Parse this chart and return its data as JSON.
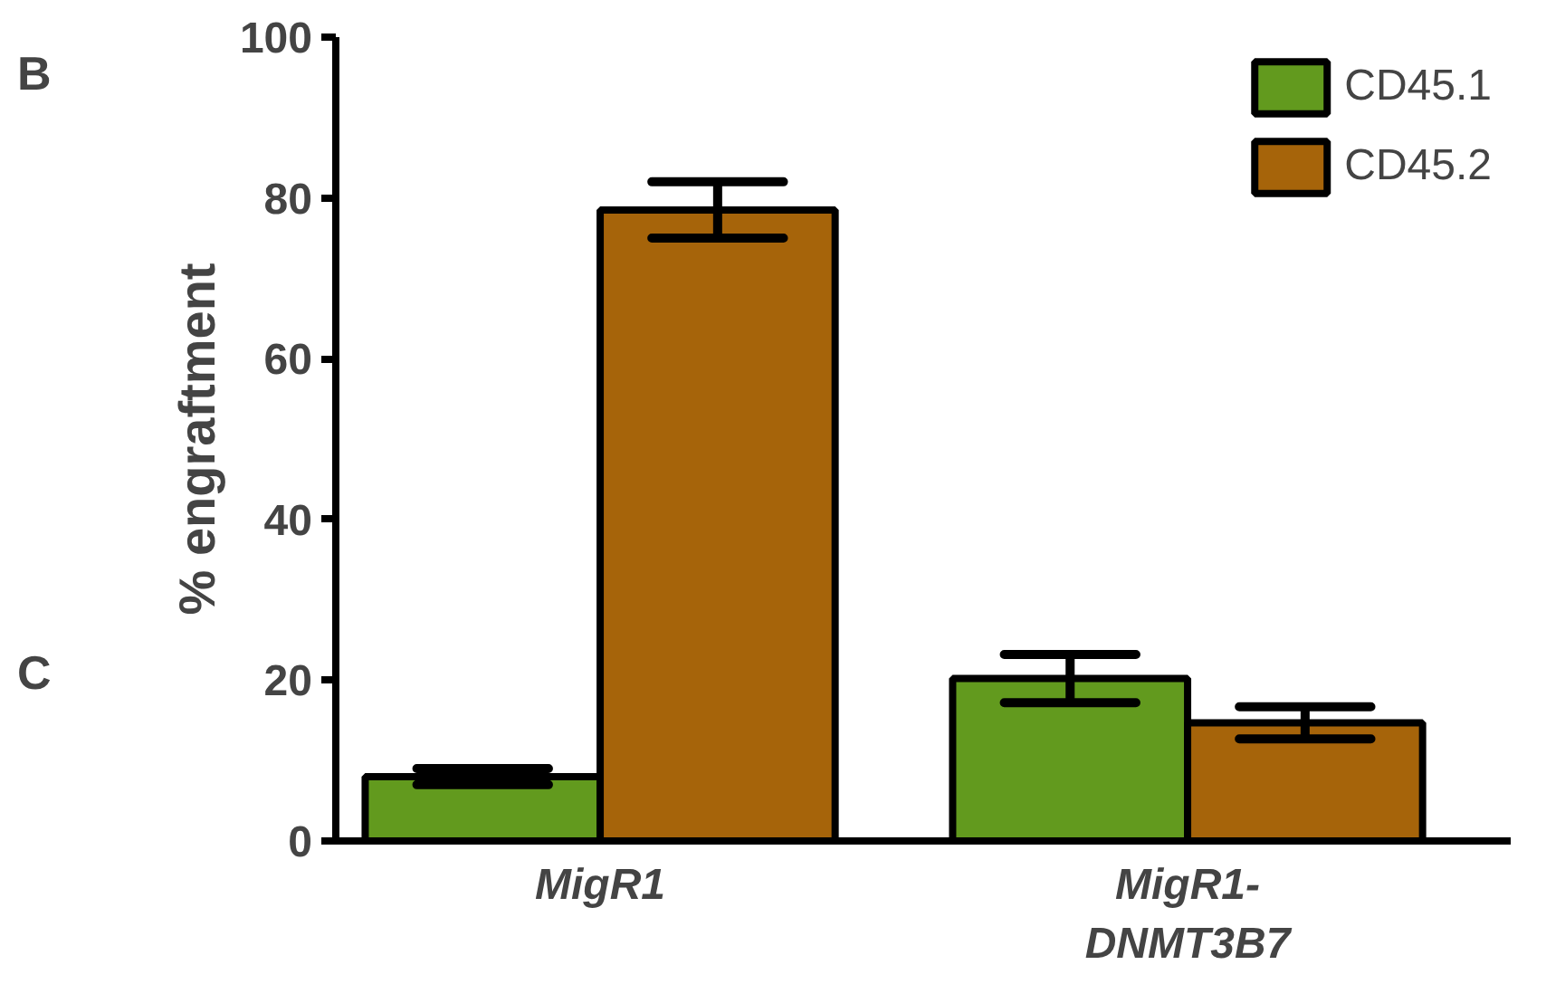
{
  "chart_data": {
    "type": "bar",
    "ylabel": "% engraftment",
    "categories": [
      "MigR1",
      "MigR1-\nDNMT3B7"
    ],
    "series": [
      {
        "name": "CD45.1",
        "color": "#629a1e",
        "values": [
          8.0,
          20.2
        ],
        "errors": [
          1,
          3
        ]
      },
      {
        "name": "CD45.2",
        "color": "#a6640a",
        "values": [
          78.5,
          14.7
        ],
        "errors": [
          3.5,
          2
        ]
      }
    ],
    "ylim": [
      0,
      100
    ],
    "yticks": [
      0,
      20,
      40,
      60,
      80,
      100
    ],
    "grid": false,
    "legend": "top right",
    "annotations": [
      "B",
      "C"
    ]
  }
}
